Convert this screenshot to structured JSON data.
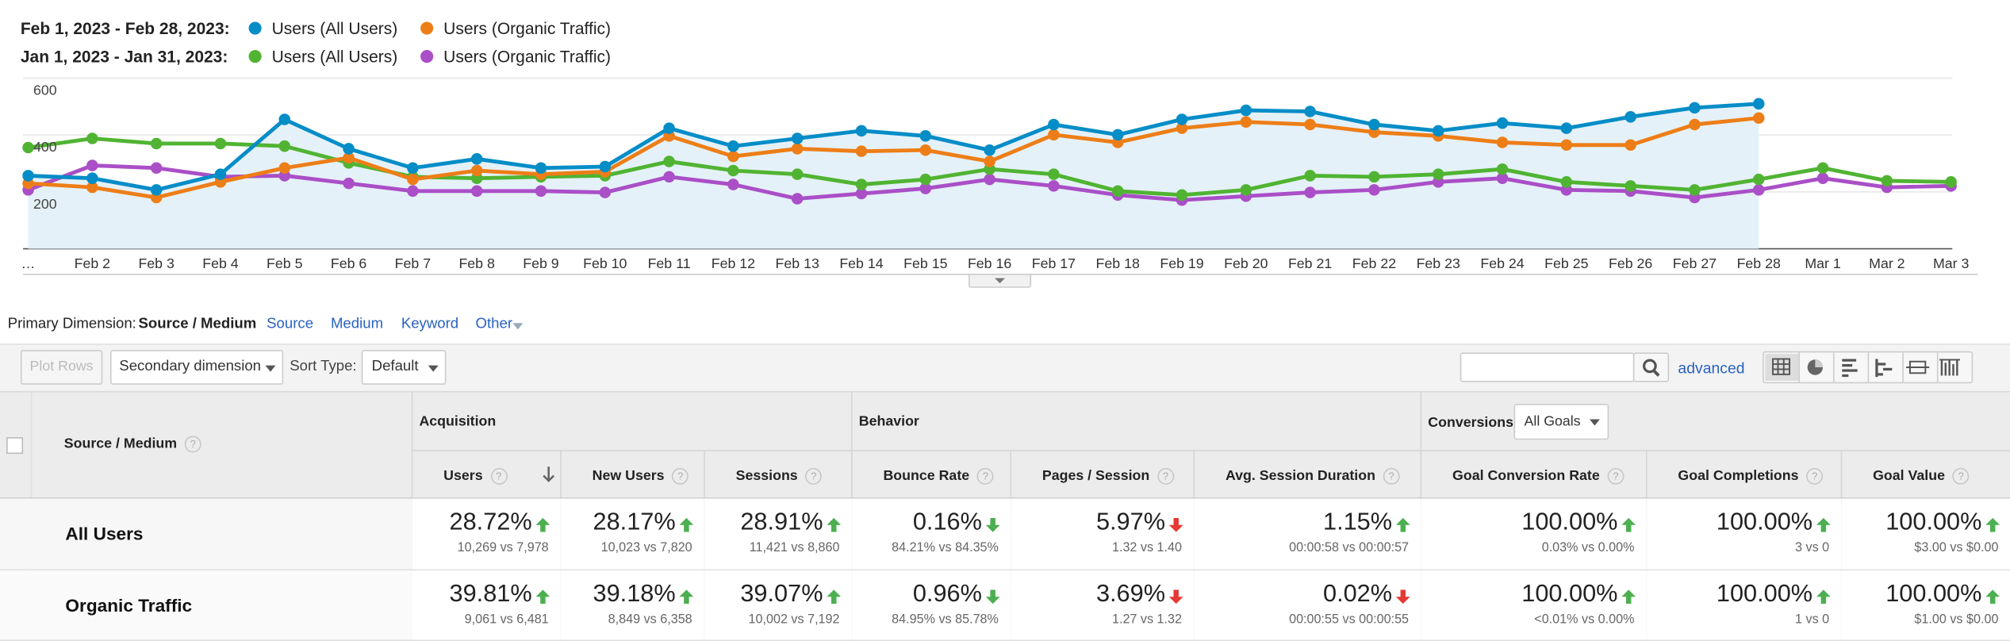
{
  "chart_data": {
    "type": "line",
    "ranges": [
      "Feb 1, 2023 - Feb 28, 2023:",
      "Jan 1, 2023 - Jan 31, 2023:"
    ],
    "categories": [
      "…",
      "Feb 2",
      "Feb 3",
      "Feb 4",
      "Feb 5",
      "Feb 6",
      "Feb 7",
      "Feb 8",
      "Feb 9",
      "Feb 10",
      "Feb 11",
      "Feb 12",
      "Feb 13",
      "Feb 14",
      "Feb 15",
      "Feb 16",
      "Feb 17",
      "Feb 18",
      "Feb 19",
      "Feb 20",
      "Feb 21",
      "Feb 22",
      "Feb 23",
      "Feb 24",
      "Feb 25",
      "Feb 26",
      "Feb 27",
      "Feb 28",
      "Mar 1",
      "Mar 2",
      "Mar 3"
    ],
    "series": [
      {
        "name": "Users (All Users)",
        "color": "#058dc7",
        "values": [
          257,
          248,
          207,
          262,
          455,
          352,
          284,
          316,
          284,
          289,
          424,
          361,
          388,
          415,
          397,
          347,
          437,
          401,
          455,
          487,
          483,
          437,
          415,
          442,
          424,
          464,
          496,
          510,
          null,
          null,
          null
        ]
      },
      {
        "name": "Users (Organic Traffic)",
        "color": "#ed7e17",
        "values": [
          230,
          216,
          180,
          235,
          284,
          320,
          244,
          275,
          262,
          271,
          397,
          325,
          352,
          343,
          347,
          307,
          401,
          374,
          424,
          446,
          437,
          410,
          397,
          374,
          365,
          365,
          437,
          460,
          null,
          null,
          null
        ]
      },
      {
        "name": "Users (All Users)",
        "color": "#50b432",
        "values": [
          356,
          388,
          370,
          370,
          361,
          302,
          253,
          248,
          253,
          257,
          307,
          275,
          262,
          226,
          244,
          280,
          262,
          203,
          189,
          207,
          257,
          253,
          262,
          280,
          235,
          221,
          207,
          244,
          284,
          239,
          235
        ]
      },
      {
        "name": "Users (Organic Traffic)",
        "color": "#aa4fc7",
        "values": [
          207,
          293,
          284,
          253,
          257,
          230,
          203,
          203,
          203,
          198,
          253,
          226,
          176,
          194,
          212,
          244,
          221,
          189,
          171,
          185,
          198,
          207,
          235,
          248,
          207,
          203,
          180,
          207,
          248,
          216,
          221
        ]
      }
    ],
    "ylim": [
      0,
      600
    ],
    "yticks": [
      200,
      400,
      600
    ],
    "grid": true,
    "area_series": 0
  },
  "dimension_bar": {
    "label": "Primary Dimension:",
    "active": "Source / Medium",
    "links": [
      "Source",
      "Medium",
      "Keyword",
      "Other"
    ]
  },
  "toolbar": {
    "plot_rows": "Plot Rows",
    "secondary": "Secondary dimension",
    "sort_label": "Sort Type:",
    "sort_value": "Default",
    "advanced": "advanced"
  },
  "table": {
    "help": "?",
    "dimension_header": "Source / Medium",
    "groups": [
      "Acquisition",
      "Behavior",
      "Conversions"
    ],
    "goals": "All Goals",
    "columns": [
      "Users",
      "New Users",
      "Sessions",
      "Bounce Rate",
      "Pages / Session",
      "Avg. Session Duration",
      "Goal Conversion Rate",
      "Goal Completions",
      "Goal Value"
    ],
    "rows": [
      {
        "label": "All Users",
        "cells": [
          {
            "value": "28.72%",
            "compare": "10,269 vs 7,978",
            "trend": "up",
            "color": "#4caf50"
          },
          {
            "value": "28.17%",
            "compare": "10,023 vs 7,820",
            "trend": "up",
            "color": "#4caf50"
          },
          {
            "value": "28.91%",
            "compare": "11,421 vs 8,860",
            "trend": "up",
            "color": "#4caf50"
          },
          {
            "value": "0.16%",
            "compare": "84.21% vs 84.35%",
            "trend": "down",
            "color": "#4caf50"
          },
          {
            "value": "5.97%",
            "compare": "1.32 vs 1.40",
            "trend": "down",
            "color": "#e53935"
          },
          {
            "value": "1.15%",
            "compare": "00:00:58 vs 00:00:57",
            "trend": "up",
            "color": "#4caf50"
          },
          {
            "value": "100.00%",
            "compare": "0.03% vs 0.00%",
            "trend": "up",
            "color": "#4caf50"
          },
          {
            "value": "100.00%",
            "compare": "3 vs 0",
            "trend": "up",
            "color": "#4caf50"
          },
          {
            "value": "100.00%",
            "compare": "$3.00 vs $0.00",
            "trend": "up",
            "color": "#4caf50"
          }
        ]
      },
      {
        "label": "Organic Traffic",
        "cells": [
          {
            "value": "39.81%",
            "compare": "9,061 vs 6,481",
            "trend": "up",
            "color": "#4caf50"
          },
          {
            "value": "39.18%",
            "compare": "8,849 vs 6,358",
            "trend": "up",
            "color": "#4caf50"
          },
          {
            "value": "39.07%",
            "compare": "10,002 vs 7,192",
            "trend": "up",
            "color": "#4caf50"
          },
          {
            "value": "0.96%",
            "compare": "84.95% vs 85.78%",
            "trend": "down",
            "color": "#4caf50"
          },
          {
            "value": "3.69%",
            "compare": "1.27 vs 1.32",
            "trend": "down",
            "color": "#e53935"
          },
          {
            "value": "0.02%",
            "compare": "00:00:55 vs 00:00:55",
            "trend": "down",
            "color": "#e53935"
          },
          {
            "value": "100.00%",
            "compare": "<0.01% vs 0.00%",
            "trend": "up",
            "color": "#4caf50"
          },
          {
            "value": "100.00%",
            "compare": "1 vs 0",
            "trend": "up",
            "color": "#4caf50"
          },
          {
            "value": "100.00%",
            "compare": "$1.00 vs $0.00",
            "trend": "up",
            "color": "#4caf50"
          }
        ]
      }
    ]
  }
}
